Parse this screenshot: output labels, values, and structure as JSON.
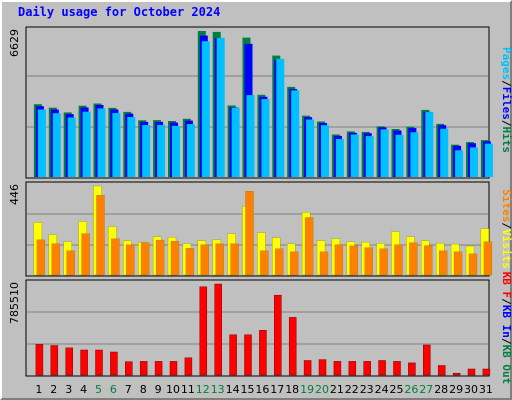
{
  "title": "Daily usage for October 2024",
  "colors": {
    "hits": "#008040",
    "files": "#0000ff",
    "pages": "#00c0ff",
    "visits": "#ffff00",
    "sites": "#ff8000",
    "kbin": "#0000ff",
    "kbout": "#008040",
    "kbf": "#ff0000",
    "weekend_label": "#008040",
    "weekday_label": "#000000"
  },
  "chart_data": [
    {
      "type": "bar",
      "panel": "hits-files-pages",
      "y_max_label": "6629",
      "ylim": [
        0,
        6629
      ],
      "legend": [
        "Pages",
        "/",
        "Files",
        "/",
        "Hits"
      ],
      "x": [
        1,
        2,
        3,
        4,
        5,
        6,
        7,
        8,
        9,
        10,
        11,
        12,
        13,
        14,
        15,
        16,
        17,
        18,
        19,
        20,
        21,
        22,
        23,
        24,
        25,
        26,
        27,
        28,
        29,
        30,
        31
      ],
      "series": [
        {
          "name": "Hits",
          "values": [
            3330,
            3170,
            2960,
            3260,
            3360,
            3160,
            2980,
            2600,
            2610,
            2570,
            2670,
            6629,
            6590,
            3270,
            6330,
            3750,
            5520,
            4110,
            2810,
            2550,
            1960,
            2100,
            2080,
            2330,
            2210,
            2320,
            3070,
            2440,
            1500,
            1620,
            1710
          ]
        },
        {
          "name": "Files",
          "values": [
            3240,
            3090,
            2880,
            3180,
            3290,
            3090,
            2900,
            2530,
            2530,
            2500,
            2590,
            6420,
            6320,
            3190,
            6050,
            3660,
            5340,
            4010,
            2740,
            2480,
            1900,
            2040,
            2020,
            2280,
            2140,
            2250,
            2980,
            2380,
            1450,
            1570,
            1650
          ]
        },
        {
          "name": "Pages",
          "values": [
            3090,
            2920,
            2730,
            2990,
            3140,
            2930,
            2750,
            2390,
            2390,
            2350,
            2430,
            6170,
            6320,
            3170,
            3740,
            3560,
            5370,
            3950,
            2640,
            2380,
            1760,
            1960,
            1890,
            2190,
            1950,
            2060,
            2970,
            2220,
            1250,
            1380,
            1550
          ]
        }
      ]
    },
    {
      "type": "bar",
      "panel": "visits-sites",
      "y_max_label": "446",
      "ylim": [
        0,
        446
      ],
      "legend": [
        "Sites",
        "/",
        "Visits"
      ],
      "x": [
        1,
        2,
        3,
        4,
        5,
        6,
        7,
        8,
        9,
        10,
        11,
        12,
        13,
        14,
        15,
        16,
        17,
        18,
        19,
        20,
        21,
        22,
        23,
        24,
        25,
        26,
        27,
        28,
        29,
        30,
        31
      ],
      "series": [
        {
          "name": "Visits",
          "values": [
            265,
            205,
            170,
            270,
            446,
            245,
            175,
            168,
            195,
            192,
            160,
            175,
            180,
            210,
            345,
            215,
            190,
            160,
            315,
            175,
            185,
            170,
            168,
            162,
            220,
            195,
            175,
            162,
            158,
            148,
            235
          ]
        },
        {
          "name": "Sites",
          "values": [
            180,
            160,
            125,
            210,
            400,
            185,
            155,
            165,
            178,
            172,
            138,
            155,
            160,
            160,
            420,
            125,
            135,
            120,
            290,
            120,
            155,
            150,
            140,
            135,
            155,
            165,
            150,
            125,
            120,
            110,
            170
          ]
        }
      ]
    },
    {
      "type": "bar",
      "panel": "kbytes",
      "y_max_label": "785510",
      "ylim": [
        0,
        785510
      ],
      "legend": [
        "KB F",
        "/",
        "KB In",
        "/",
        "KB Out"
      ],
      "x": [
        1,
        2,
        3,
        4,
        5,
        6,
        7,
        8,
        9,
        10,
        11,
        12,
        13,
        14,
        15,
        16,
        17,
        18,
        19,
        20,
        21,
        22,
        23,
        24,
        25,
        26,
        27,
        28,
        29,
        30,
        31
      ],
      "series": [
        {
          "name": "KB F",
          "values": [
            270000,
            260000,
            240000,
            222000,
            222000,
            205000,
            122000,
            125000,
            125000,
            125000,
            155000,
            762000,
            785510,
            352000,
            352000,
            390000,
            690000,
            500000,
            132000,
            140000,
            125000,
            125000,
            125000,
            132000,
            125000,
            112000,
            265000,
            90000,
            24000,
            60000,
            60000
          ]
        }
      ]
    }
  ],
  "x_labels": {
    "days": [
      "1",
      "2",
      "3",
      "4",
      "5",
      "6",
      "7",
      "8",
      "9",
      "10",
      "11",
      "12",
      "13",
      "14",
      "15",
      "16",
      "17",
      "18",
      "19",
      "20",
      "21",
      "22",
      "23",
      "24",
      "25",
      "26",
      "27",
      "28",
      "29",
      "30",
      "31"
    ],
    "weekend": [
      false,
      false,
      false,
      false,
      true,
      true,
      false,
      false,
      false,
      false,
      false,
      true,
      true,
      false,
      false,
      false,
      false,
      false,
      true,
      true,
      false,
      false,
      false,
      false,
      false,
      true,
      true,
      false,
      false,
      false,
      false
    ]
  }
}
